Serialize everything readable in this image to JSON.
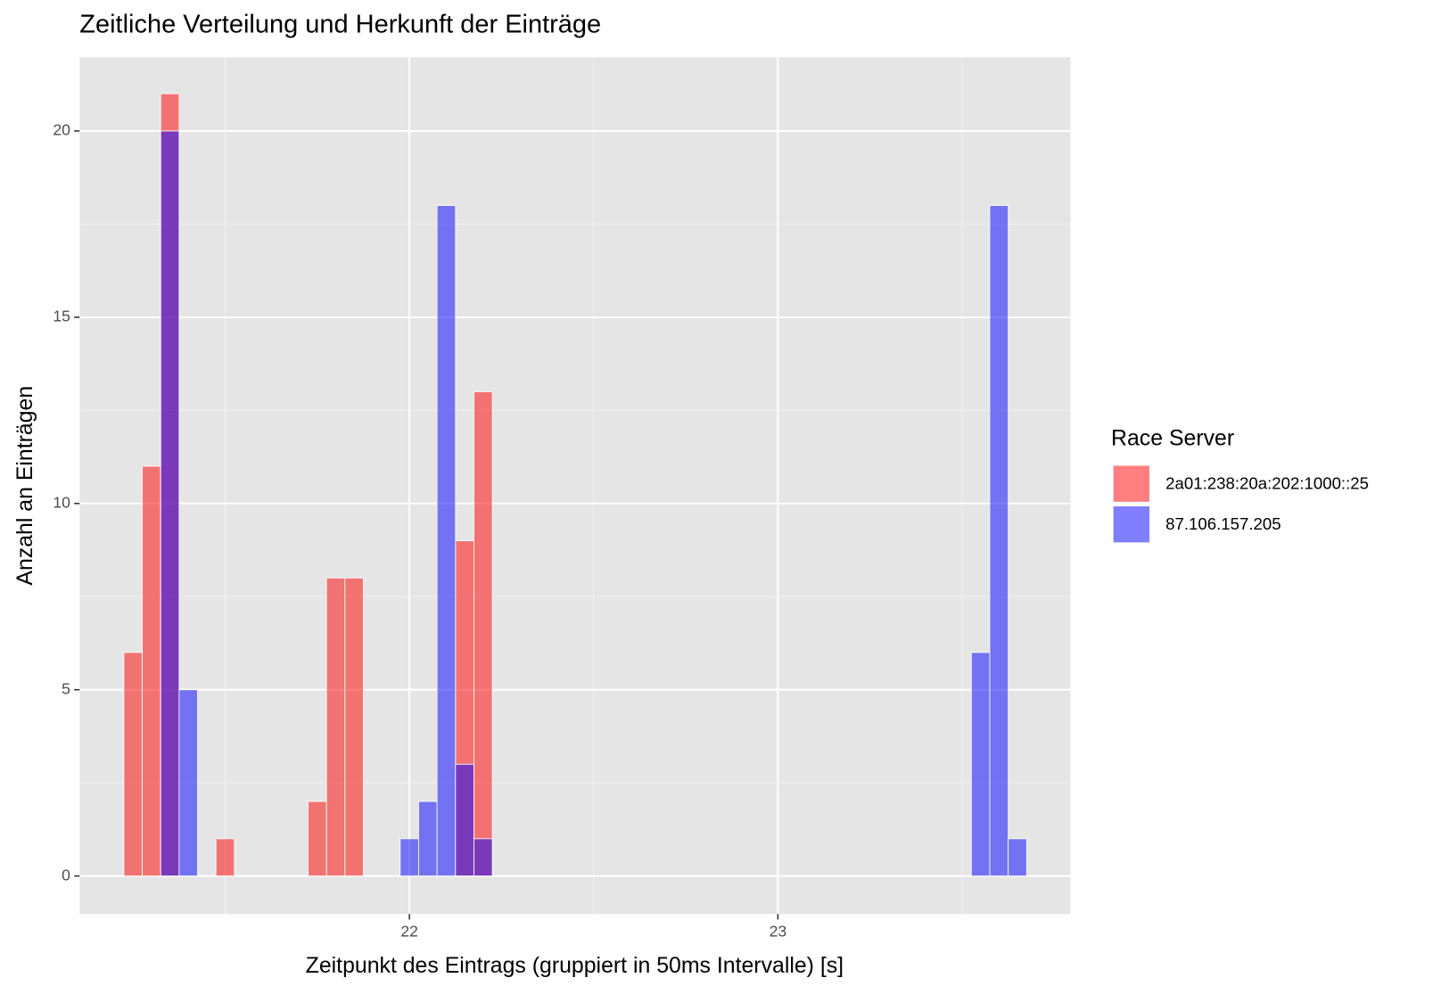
{
  "chart_data": {
    "type": "histogram",
    "title": "Zeitliche Verteilung und Herkunft der Einträge",
    "x_label": "Zeitpunkt des Eintrags (gruppiert in 50ms Intervalle) [s]",
    "y_label": "Anzahl an Einträgen",
    "legend_title": "Race Server",
    "legend_position": "right",
    "bins": [
      21.225,
      21.275,
      21.325,
      21.375,
      21.425,
      21.475,
      21.525,
      21.575,
      21.625,
      21.675,
      21.725,
      21.775,
      21.825,
      21.875,
      21.925,
      21.975,
      22.025,
      22.075,
      22.125,
      22.175,
      22.225,
      22.275,
      22.325,
      22.375,
      22.425,
      22.475,
      22.525,
      22.575,
      22.625,
      22.675,
      22.725,
      22.775,
      22.825,
      22.875,
      22.925,
      22.975,
      23.025,
      23.075,
      23.125,
      23.175,
      23.225,
      23.275,
      23.325,
      23.375,
      23.425,
      23.475,
      23.525,
      23.575,
      23.625,
      23.675
    ],
    "series": [
      {
        "name": "2a01:238:20a:202:1000::25",
        "color": "#ff0000",
        "values": [
          6,
          11,
          21,
          0,
          0,
          1,
          0,
          0,
          0,
          0,
          2,
          8,
          8,
          0,
          0,
          0,
          0,
          0,
          9,
          13,
          0,
          0,
          0,
          0,
          0,
          0,
          0,
          0,
          0,
          0,
          0,
          0,
          0,
          0,
          0,
          0,
          0,
          0,
          0,
          0,
          0,
          0,
          0,
          0,
          0,
          0,
          0,
          0,
          0
        ]
      },
      {
        "name": "87.106.157.205",
        "color": "#0000ff",
        "values": [
          0,
          0,
          20,
          5,
          0,
          0,
          0,
          0,
          0,
          0,
          0,
          0,
          0,
          0,
          0,
          1,
          2,
          18,
          3,
          1,
          0,
          0,
          0,
          0,
          0,
          0,
          0,
          0,
          0,
          0,
          0,
          0,
          0,
          0,
          0,
          0,
          0,
          0,
          0,
          0,
          0,
          0,
          0,
          0,
          0,
          0,
          6,
          18,
          1
        ]
      }
    ],
    "opacity": 0.5,
    "xlim": [
      21.105,
      23.794
    ],
    "xticks": [
      22,
      23
    ],
    "xminor": [
      21.5,
      22.5,
      23.5
    ],
    "ylim": [
      -1.02,
      21.98
    ],
    "yticks": [
      0,
      5,
      10,
      15,
      20
    ],
    "yminor": [
      2.5,
      7.5,
      12.5,
      17.5
    ],
    "grid": true
  }
}
